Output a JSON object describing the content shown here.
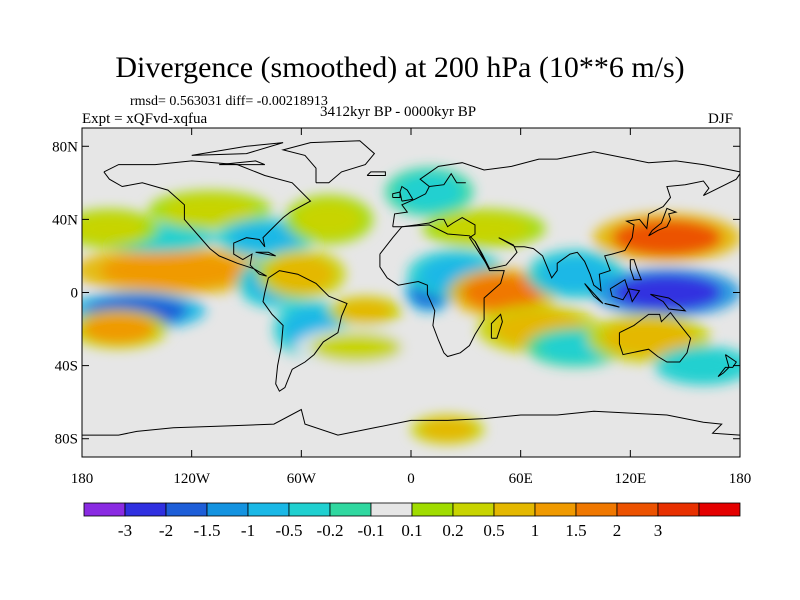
{
  "title": "Divergence (smoothed) at 200 hPa (10**6 m/s)",
  "stats": "rmsd= 0.563031 diff= -0.00218913",
  "experiment": "Expt = xQFvd-xqfua",
  "period": "3412kyr BP - 0000kyr BP",
  "season": "DJF",
  "map": {
    "lon_range": [
      -180,
      180
    ],
    "lat_range": [
      -90,
      90
    ],
    "x_ticks": [
      {
        "lon": -180,
        "label": "180"
      },
      {
        "lon": -120,
        "label": "120W"
      },
      {
        "lon": -60,
        "label": "60W"
      },
      {
        "lon": 0,
        "label": "0"
      },
      {
        "lon": 60,
        "label": "60E"
      },
      {
        "lon": 120,
        "label": "120E"
      },
      {
        "lon": 180,
        "label": "180"
      }
    ],
    "y_ticks": [
      {
        "lat": 80,
        "label": "80N"
      },
      {
        "lat": 40,
        "label": "40N"
      },
      {
        "lat": 0,
        "label": "0"
      },
      {
        "lat": -40,
        "label": "40S"
      },
      {
        "lat": -80,
        "label": "80S"
      }
    ],
    "background_color": "#e6e6e6"
  },
  "colorbar": {
    "colors": [
      "#8a2be2",
      "#3030e0",
      "#1e5ed8",
      "#1493e0",
      "#1ab8e6",
      "#20d0d0",
      "#30d8a0",
      "#e6e6e6",
      "#a0dc00",
      "#c8d400",
      "#e4b800",
      "#f09a00",
      "#f07800",
      "#ec5200",
      "#e83000",
      "#e40000"
    ],
    "labels": [
      "-3",
      "-2",
      "-1.5",
      "-1",
      "-0.5",
      "-0.2",
      "-0.1",
      "0.1",
      "0.2",
      "0.5",
      "1",
      "1.5",
      "2",
      "3"
    ]
  },
  "anomalies": [
    {
      "lon": -130,
      "lat": 12,
      "rlon": 40,
      "rlat": 10,
      "value": 1.4
    },
    {
      "lon": -140,
      "lat": 30,
      "rlon": 25,
      "rlat": 6,
      "value": -0.5
    },
    {
      "lon": -150,
      "lat": -10,
      "rlon": 28,
      "rlat": 8,
      "value": -1.8
    },
    {
      "lon": -160,
      "lat": -20,
      "rlon": 20,
      "rlat": 8,
      "value": 1.0
    },
    {
      "lon": -165,
      "lat": 35,
      "rlon": 20,
      "rlat": 8,
      "value": 0.3
    },
    {
      "lon": -110,
      "lat": 45,
      "rlon": 25,
      "rlat": 8,
      "value": 0.4
    },
    {
      "lon": -80,
      "lat": 30,
      "rlon": 20,
      "rlat": 8,
      "value": -0.8
    },
    {
      "lon": -75,
      "lat": 5,
      "rlon": 15,
      "rlat": 10,
      "value": -1.0
    },
    {
      "lon": -60,
      "lat": 10,
      "rlon": 18,
      "rlat": 10,
      "value": 0.9
    },
    {
      "lon": -55,
      "lat": -20,
      "rlon": 15,
      "rlat": 12,
      "value": -0.6
    },
    {
      "lon": -45,
      "lat": 40,
      "rlon": 18,
      "rlat": 10,
      "value": 0.3
    },
    {
      "lon": -30,
      "lat": -30,
      "rlon": 25,
      "rlat": 8,
      "value": 0.2
    },
    {
      "lon": 10,
      "lat": 55,
      "rlon": 18,
      "rlat": 10,
      "value": -0.3
    },
    {
      "lon": 10,
      "lat": 0,
      "rlon": 10,
      "rlat": 8,
      "value": -1.8
    },
    {
      "lon": 25,
      "lat": 10,
      "rlon": 20,
      "rlat": 10,
      "value": -1.0
    },
    {
      "lon": 40,
      "lat": 35,
      "rlon": 25,
      "rlat": 8,
      "value": 0.3
    },
    {
      "lon": 50,
      "lat": 0,
      "rlon": 22,
      "rlat": 10,
      "value": 1.8
    },
    {
      "lon": 70,
      "lat": -20,
      "rlon": 25,
      "rlat": 10,
      "value": 0.6
    },
    {
      "lon": 90,
      "lat": 10,
      "rlon": 20,
      "rlat": 10,
      "value": -0.6
    },
    {
      "lon": 90,
      "lat": -30,
      "rlon": 20,
      "rlat": 8,
      "value": -0.4
    },
    {
      "lon": 140,
      "lat": 30,
      "rlon": 30,
      "rlat": 10,
      "value": 2.2
    },
    {
      "lon": 140,
      "lat": 0,
      "rlon": 30,
      "rlat": 10,
      "value": -2.4
    },
    {
      "lon": 130,
      "lat": -25,
      "rlon": 25,
      "rlat": 10,
      "value": 0.8
    },
    {
      "lon": 160,
      "lat": -40,
      "rlon": 20,
      "rlat": 8,
      "value": -0.5
    },
    {
      "lon": -25,
      "lat": -10,
      "rlon": 15,
      "rlat": 6,
      "value": 0.7
    },
    {
      "lon": 20,
      "lat": -75,
      "rlon": 15,
      "rlat": 6,
      "value": 0.8
    }
  ]
}
